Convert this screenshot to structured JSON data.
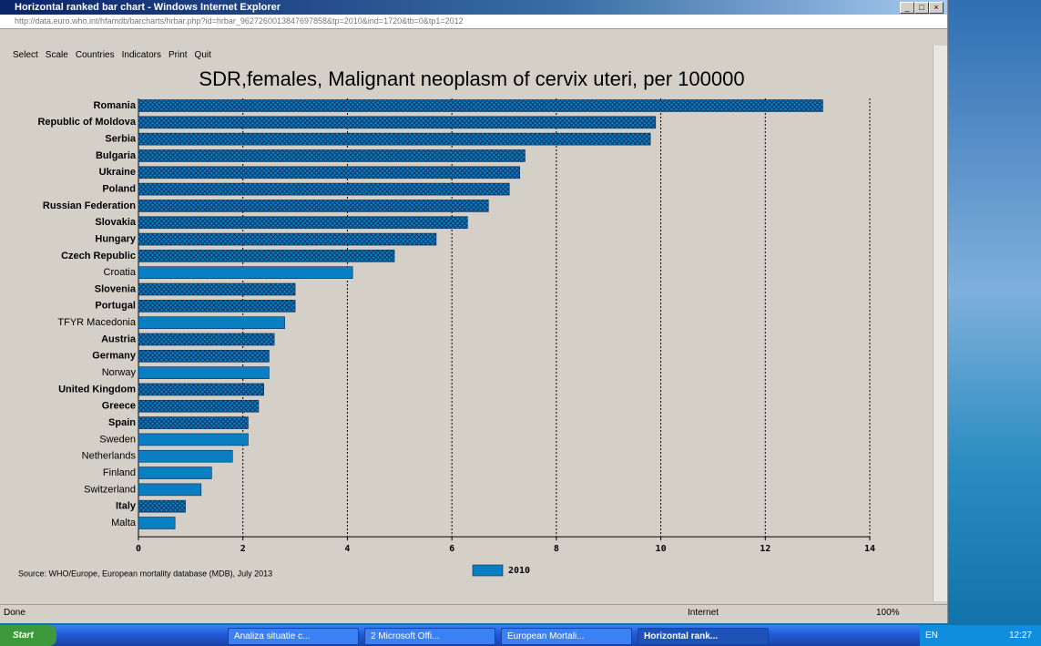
{
  "window": {
    "title": "Horizontal ranked bar chart - Windows Internet Explorer",
    "url": "http://data.euro.who.int/hfamdb/barcharts/hrbar.php?id=hrbar_9627260013847697858&tp=2010&ind=1720&tb=0&tp1=2012",
    "menu": [
      "Select",
      "Scale",
      "Countries",
      "Indicators",
      "Print",
      "Quit"
    ],
    "status": "Done",
    "zone": "Internet",
    "zoom": "100%"
  },
  "taskbar": {
    "start": "Start",
    "items": [
      "Analiza situatie c...",
      "2 Microsoft Offi...",
      "European Mortali...",
      "Horizontal rank..."
    ],
    "lang": "EN",
    "clock": "12:27"
  },
  "chart_data": {
    "type": "hbar",
    "title": "SDR,females, Malignant neoplasm of cervix uteri, per 100000",
    "categories": [
      "Romania",
      "Republic of Moldova",
      "Serbia",
      "Bulgaria",
      "Ukraine",
      "Poland",
      "Russian Federation",
      "Slovakia",
      "Hungary",
      "Czech Republic",
      "Croatia",
      "Slovenia",
      "Portugal",
      "TFYR Macedonia",
      "Austria",
      "Germany",
      "Norway",
      "United Kingdom",
      "Greece",
      "Spain",
      "Sweden",
      "Netherlands",
      "Finland",
      "Switzerland",
      "Italy",
      "Malta"
    ],
    "hatched": [
      true,
      true,
      true,
      true,
      true,
      true,
      true,
      true,
      true,
      true,
      false,
      true,
      true,
      false,
      true,
      true,
      false,
      true,
      true,
      true,
      false,
      false,
      false,
      false,
      true,
      false
    ],
    "series": [
      {
        "name": "2010",
        "color": "#0a7ec2",
        "values": [
          13.1,
          9.9,
          9.8,
          7.4,
          7.3,
          7.1,
          6.7,
          6.3,
          5.7,
          4.9,
          4.1,
          3.0,
          3.0,
          2.8,
          2.6,
          2.5,
          2.5,
          2.4,
          2.3,
          2.1,
          2.1,
          1.8,
          1.4,
          1.2,
          0.9,
          0.7
        ]
      }
    ],
    "xlim": [
      0,
      14
    ],
    "xticks": [
      0,
      2,
      4,
      6,
      8,
      10,
      12,
      14
    ],
    "grid": true,
    "source": "Source: WHO/Europe, European mortality database (MDB), July 2013"
  }
}
